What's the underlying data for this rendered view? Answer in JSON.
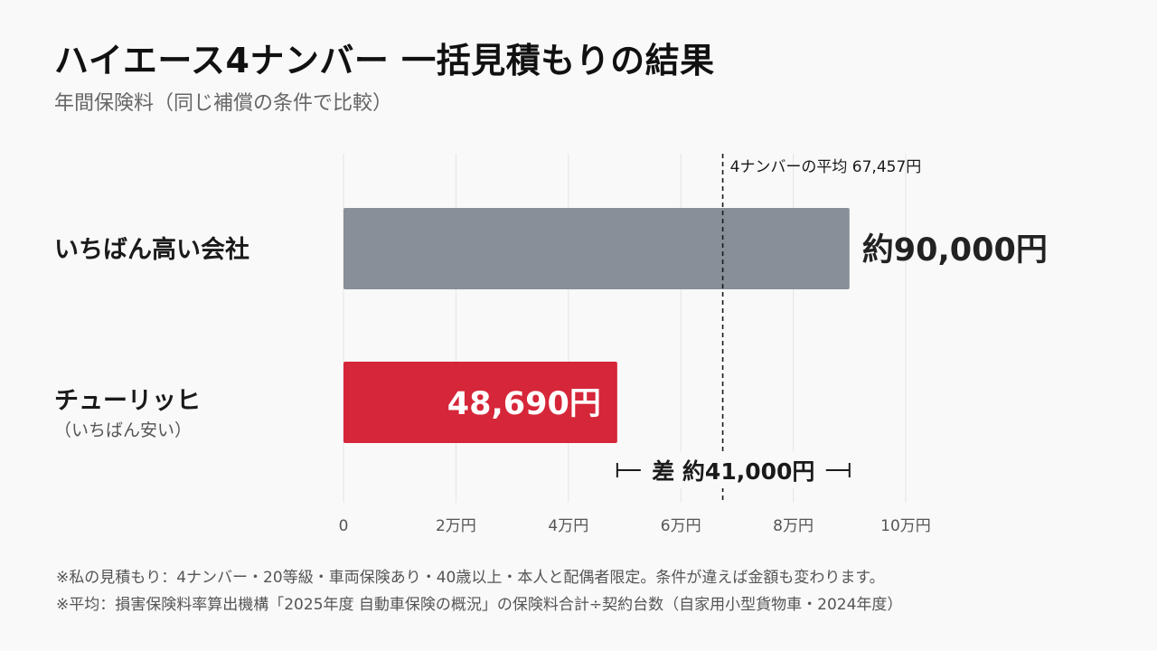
{
  "header": {
    "title": "ハイエース4ナンバー 一括見積もりの結果",
    "subtitle": "年間保険料（同じ補償の条件で比較）"
  },
  "colors": {
    "high_bar": "#898f99",
    "low_bar": "#d62639",
    "grid": "#e4e4e4",
    "axis_text": "#555555",
    "text": "#1a1a1a"
  },
  "chart_data": {
    "type": "bar",
    "orientation": "horizontal",
    "categories": [
      {
        "label": "いちばん高い会社",
        "sublabel": ""
      },
      {
        "label": "チューリッヒ",
        "sublabel": "（いちばん安い）"
      }
    ],
    "values": [
      90000,
      48690
    ],
    "value_labels": [
      "約90,000円",
      "48,690円"
    ],
    "xlim": [
      0,
      100000
    ],
    "xticks": [
      0,
      20000,
      40000,
      60000,
      80000,
      100000
    ],
    "xtick_labels": [
      "0",
      "2万円",
      "4万円",
      "6万円",
      "8万円",
      "10万円"
    ],
    "grid": true,
    "reference_line": {
      "value": 67457,
      "label": "4ナンバーの平均 67,457円"
    },
    "difference": {
      "from": 48690,
      "to": 90000,
      "label": "差 約41,000円"
    }
  },
  "footnotes": [
    "※私の見積もり：4ナンバー・20等級・車両保険あり・40歳以上・本人と配偶者限定。条件が違えば金額も変わります。",
    "※平均：損害保険料率算出機構「2025年度 自動車保険の概況」の保険料合計÷契約台数（自家用小型貨物車・2024年度）"
  ]
}
